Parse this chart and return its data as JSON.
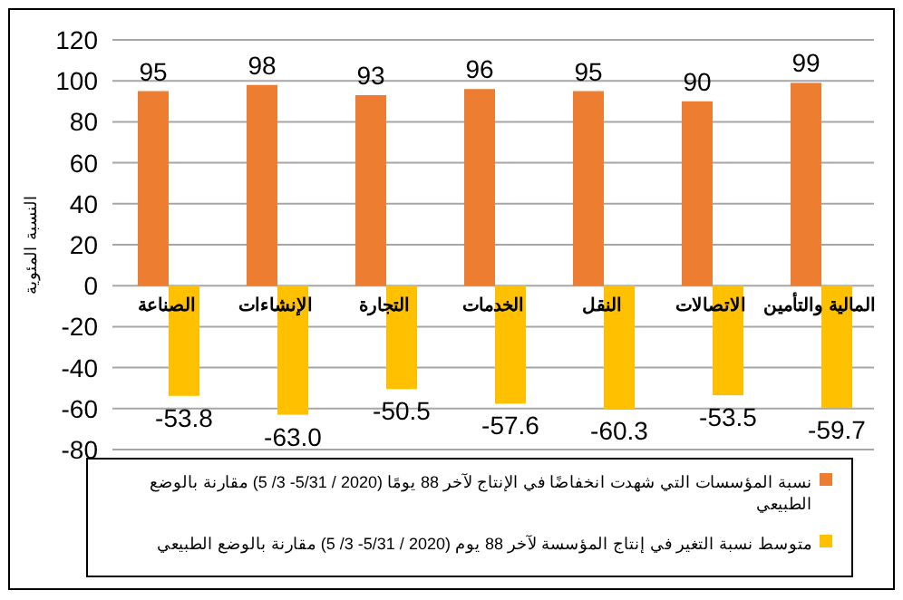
{
  "chart_data": {
    "type": "bar",
    "ylabel": "النسبة المئوية",
    "categories": [
      "الصناعة",
      "الإنشاءات",
      "التجارة",
      "الخدمات",
      "النقل",
      "الاتصالات",
      "المالية والتأمين"
    ],
    "series": [
      {
        "name": "نسبة المؤسسات التي شهدت انخفاضًا في الإنتاج لآخر 88 يومًا (2020 / 5/31- 3/ 5) مقارنة بالوضع الطبيعي",
        "color": "#ed7d31",
        "values": [
          95,
          98,
          93,
          96,
          95,
          90,
          99
        ],
        "value_labels": [
          "95",
          "98",
          "93",
          "96",
          "95",
          "90",
          "99"
        ]
      },
      {
        "name": "متوسط نسبة التغير في إنتاج المؤسسة لآخر 88 يوم (2020 / 5/31- 3/ 5) مقارنة بالوضع الطبيعي",
        "color": "#ffc000",
        "values": [
          -53.8,
          -63.0,
          -50.5,
          -57.6,
          -60.3,
          -53.5,
          -59.7
        ],
        "value_labels": [
          "-53.8",
          "-63.0",
          "-50.5",
          "-57.6",
          "-60.3",
          "-53.5",
          "-59.7"
        ]
      }
    ],
    "ylim": [
      -80,
      120
    ],
    "yticks": [
      -80,
      -60,
      -40,
      -20,
      0,
      20,
      40,
      60,
      80,
      100,
      120
    ],
    "grid": "y",
    "legend": "bottom"
  }
}
